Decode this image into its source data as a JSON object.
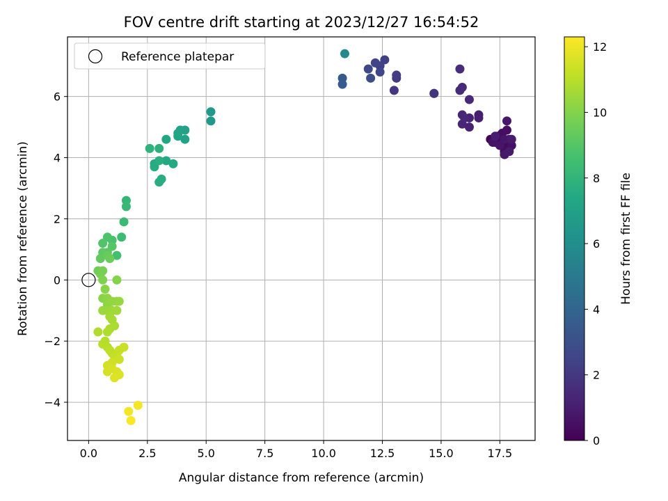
{
  "chart_data": {
    "type": "scatter",
    "title": "FOV centre drift starting at 2023/12/27 16:54:52",
    "xlabel": "Angular distance from reference (arcmin)",
    "ylabel": "Rotation from reference (arcmin)",
    "xlim": [
      -0.9,
      19.0
    ],
    "ylim": [
      -5.25,
      7.95
    ],
    "xticks": [
      0.0,
      2.5,
      5.0,
      7.5,
      10.0,
      12.5,
      15.0,
      17.5
    ],
    "xtick_labels": [
      "0.0",
      "2.5",
      "5.0",
      "7.5",
      "10.0",
      "12.5",
      "15.0",
      "17.5"
    ],
    "yticks": [
      -4,
      -2,
      0,
      2,
      4,
      6
    ],
    "ytick_labels": [
      "−4",
      "−2",
      "0",
      "2",
      "4",
      "6"
    ],
    "grid": true,
    "legend": {
      "placement": "top-left",
      "entries": [
        {
          "label": "Reference platepar",
          "marker": "open-circle"
        }
      ]
    },
    "reference_point": {
      "x": 0.0,
      "y": 0.0
    },
    "colorbar": {
      "label": "Hours from first FF file",
      "colormap": "viridis",
      "range": [
        0,
        12.3
      ],
      "ticks": [
        0,
        2,
        4,
        6,
        8,
        10,
        12
      ],
      "tick_labels": [
        "0",
        "2",
        "4",
        "6",
        "8",
        "10",
        "12"
      ]
    },
    "series": [
      {
        "point_fields": [
          "x",
          "y",
          "hours"
        ],
        "points": [
          [
            17.1,
            4.6,
            0.05
          ],
          [
            17.3,
            4.5,
            0.1
          ],
          [
            17.5,
            4.6,
            0.15
          ],
          [
            17.6,
            4.4,
            0.2
          ],
          [
            17.8,
            4.5,
            0.25
          ],
          [
            17.9,
            4.3,
            0.3
          ],
          [
            17.7,
            4.2,
            0.35
          ],
          [
            17.4,
            4.7,
            0.4
          ],
          [
            17.6,
            4.8,
            0.45
          ],
          [
            17.8,
            4.9,
            0.5
          ],
          [
            18.0,
            4.4,
            0.55
          ],
          [
            17.9,
            4.6,
            0.6
          ],
          [
            17.2,
            4.5,
            0.65
          ],
          [
            17.5,
            4.4,
            0.7
          ],
          [
            17.7,
            4.6,
            0.75
          ],
          [
            17.8,
            5.2,
            0.8
          ],
          [
            17.7,
            4.1,
            0.85
          ],
          [
            17.9,
            4.2,
            0.9
          ],
          [
            18.0,
            4.6,
            0.95
          ],
          [
            17.3,
            4.7,
            1.0
          ],
          [
            16.6,
            5.4,
            1.05
          ],
          [
            16.6,
            5.3,
            1.1
          ],
          [
            16.2,
            5.3,
            1.15
          ],
          [
            16.2,
            5.0,
            1.2
          ],
          [
            15.9,
            5.1,
            1.25
          ],
          [
            15.9,
            5.4,
            1.3
          ],
          [
            16.0,
            5.3,
            1.35
          ],
          [
            16.2,
            5.9,
            1.4
          ],
          [
            15.8,
            6.2,
            1.45
          ],
          [
            15.9,
            6.3,
            1.5
          ],
          [
            15.8,
            6.9,
            1.55
          ],
          [
            14.7,
            6.1,
            1.7
          ],
          [
            14.7,
            6.1,
            1.8
          ],
          [
            13.0,
            6.2,
            1.95
          ],
          [
            13.1,
            6.6,
            2.05
          ],
          [
            13.1,
            6.7,
            2.15
          ],
          [
            12.6,
            7.2,
            2.3
          ],
          [
            12.4,
            7.0,
            2.4
          ],
          [
            12.2,
            7.1,
            2.5
          ],
          [
            12.4,
            6.8,
            2.6
          ],
          [
            11.9,
            6.9,
            2.7
          ],
          [
            12.0,
            6.6,
            2.85
          ],
          [
            10.8,
            6.6,
            3.4
          ],
          [
            10.8,
            6.4,
            3.5
          ],
          [
            10.9,
            7.4,
            5.7
          ],
          [
            5.2,
            5.5,
            6.5
          ],
          [
            5.2,
            5.2,
            6.6
          ],
          [
            4.1,
            4.9,
            7.0
          ],
          [
            3.9,
            4.9,
            7.05
          ],
          [
            4.1,
            4.6,
            7.1
          ],
          [
            3.8,
            4.8,
            7.15
          ],
          [
            3.8,
            4.7,
            7.2
          ],
          [
            3.3,
            4.6,
            7.3
          ],
          [
            3.3,
            3.9,
            7.4
          ],
          [
            3.6,
            3.8,
            7.45
          ],
          [
            2.8,
            3.8,
            7.5
          ],
          [
            2.8,
            3.7,
            7.55
          ],
          [
            3.1,
            3.3,
            7.6
          ],
          [
            3.0,
            3.2,
            7.65
          ],
          [
            3.0,
            3.9,
            7.7
          ],
          [
            3.0,
            4.3,
            7.8
          ],
          [
            2.6,
            4.3,
            7.9
          ],
          [
            1.6,
            2.6,
            8.1
          ],
          [
            1.6,
            2.4,
            8.2
          ],
          [
            1.5,
            1.9,
            8.3
          ],
          [
            1.4,
            1.4,
            8.4
          ],
          [
            1.2,
            0.8,
            8.6
          ],
          [
            1.0,
            1.3,
            8.7
          ],
          [
            0.8,
            1.4,
            8.8
          ],
          [
            0.6,
            1.2,
            8.9
          ],
          [
            1.0,
            1.1,
            9.0
          ],
          [
            0.8,
            0.9,
            9.1
          ],
          [
            0.6,
            0.9,
            9.2
          ],
          [
            0.5,
            0.7,
            9.3
          ],
          [
            0.8,
            0.8,
            9.4
          ],
          [
            0.9,
            0.7,
            9.5
          ],
          [
            0.4,
            0.3,
            9.6
          ],
          [
            0.5,
            0.2,
            9.7
          ],
          [
            0.6,
            0.3,
            9.8
          ],
          [
            0.6,
            0.0,
            9.9
          ],
          [
            1.2,
            0.0,
            10.0
          ],
          [
            0.7,
            -0.3,
            10.1
          ],
          [
            0.6,
            -0.6,
            10.1
          ],
          [
            0.8,
            -0.6,
            10.2
          ],
          [
            0.8,
            -0.8,
            10.2
          ],
          [
            1.0,
            -0.7,
            10.3
          ],
          [
            1.2,
            -0.7,
            10.3
          ],
          [
            1.3,
            -0.7,
            10.35
          ],
          [
            0.8,
            -1.0,
            10.4
          ],
          [
            0.6,
            -1.0,
            10.45
          ],
          [
            1.0,
            -1.0,
            10.5
          ],
          [
            1.2,
            -1.0,
            10.55
          ],
          [
            0.9,
            -1.2,
            10.6
          ],
          [
            1.0,
            -1.3,
            10.65
          ],
          [
            1.1,
            -1.5,
            10.7
          ],
          [
            0.9,
            -1.6,
            10.75
          ],
          [
            0.8,
            -1.7,
            10.8
          ],
          [
            0.4,
            -1.7,
            10.85
          ],
          [
            0.7,
            -2.0,
            10.9
          ],
          [
            0.6,
            -2.1,
            10.95
          ],
          [
            0.8,
            -2.2,
            11.0
          ],
          [
            0.9,
            -2.3,
            11.05
          ],
          [
            1.0,
            -2.4,
            11.1
          ],
          [
            1.1,
            -2.5,
            11.15
          ],
          [
            1.2,
            -2.5,
            11.2
          ],
          [
            1.3,
            -2.3,
            11.25
          ],
          [
            1.5,
            -2.2,
            11.3
          ],
          [
            1.3,
            -2.6,
            11.35
          ],
          [
            1.0,
            -2.7,
            11.4
          ],
          [
            0.8,
            -2.8,
            11.45
          ],
          [
            0.8,
            -3.0,
            11.5
          ],
          [
            1.0,
            -2.9,
            11.55
          ],
          [
            1.2,
            -3.0,
            11.6
          ],
          [
            1.3,
            -3.1,
            11.65
          ],
          [
            1.1,
            -3.2,
            11.7
          ],
          [
            1.7,
            -4.3,
            12.1
          ],
          [
            2.1,
            -4.1,
            12.15
          ],
          [
            1.8,
            -4.6,
            12.25
          ]
        ]
      }
    ]
  }
}
